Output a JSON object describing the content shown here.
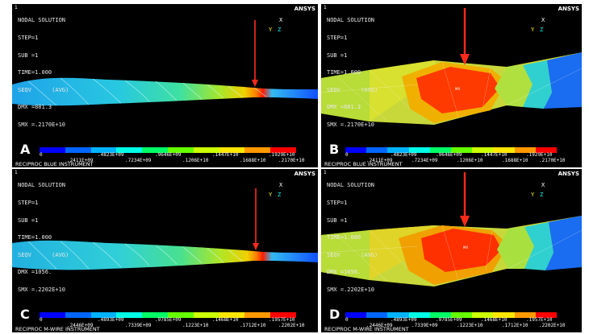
{
  "panels": [
    {
      "id": "A",
      "index": "1",
      "letter": "A",
      "title": "NODAL SOLUTION",
      "lines": [
        "STEP=1",
        "SUB =1",
        "TIME=1.000",
        "SEQV      (AVG)",
        "DMX =881.3",
        "SMX =.2170E+10"
      ],
      "brand": "ANSYS",
      "caption": "RECIPROC BLUE INSTRUMENT",
      "legend_top": [
        "0",
        ".4823E+09",
        ".9646E+09",
        ".1447E+10",
        ".1929E+10"
      ],
      "legend_bottom": [
        ".2411E+09",
        ".7234E+09",
        ".1206E+10",
        ".1688E+10",
        ".2170E+10"
      ],
      "view": "full"
    },
    {
      "id": "B",
      "index": "1",
      "letter": "B",
      "title": "NODAL SOLUTION",
      "lines": [
        "STEP=1",
        "SUB =1",
        "TIME=1.000",
        "SEQV      (AVG)",
        "DMX =881.3",
        "SMX =.2170E+10"
      ],
      "brand": "ANSYS",
      "caption": "RECIPROC BLUE INSTRUMENT",
      "legend_top": [
        "0",
        ".4823E+09",
        ".9646E+09",
        ".1447E+10",
        ".1929E+10"
      ],
      "legend_bottom": [
        ".2411E+09",
        ".7234E+09",
        ".1206E+10",
        ".1688E+10",
        ".2170E+10"
      ],
      "view": "zoom"
    },
    {
      "id": "C",
      "index": "1",
      "letter": "C",
      "title": "NODAL SOLUTION",
      "lines": [
        "STEP=1",
        "SUB =1",
        "TIME=1.000",
        "SEQV      (AVG)",
        "DMX =1056.",
        "SMX =.2202E+10"
      ],
      "brand": "ANSYS",
      "caption": "RECIPROC M-WIRE INSTRUMENT",
      "legend_top": [
        "0",
        ".4893E+09",
        ".9785E+09",
        ".1468E+10",
        ".1957E+10"
      ],
      "legend_bottom": [
        ".2446E+09",
        ".7339E+09",
        ".1223E+10",
        ".1712E+10",
        ".2202E+10"
      ],
      "view": "full"
    },
    {
      "id": "D",
      "index": "1",
      "letter": "D",
      "title": "NODAL SOLUTION",
      "lines": [
        "STEP=1",
        "SUB =1",
        "TIME=1.000",
        "SEQV      (AVG)",
        "DMX =1056.",
        "SMX =.2202E+10"
      ],
      "brand": "ANSYS",
      "caption": "RECIPROC M-WIRE INSTRUMENT",
      "legend_top": [
        "0",
        ".4893E+09",
        ".9785E+09",
        ".1468E+10",
        ".1957E+10"
      ],
      "legend_bottom": [
        ".2446E+09",
        ".7339E+09",
        ".1223E+10",
        ".1712E+10",
        ".2202E+10"
      ],
      "view": "zoom"
    }
  ],
  "axis_labels": {
    "x": "X",
    "y": "Y",
    "z": "Z"
  },
  "mx_label": "MX",
  "contour_colors": [
    "#0000ff",
    "#0066ff",
    "#00b3ff",
    "#00ffe6",
    "#00ff66",
    "#66ff00",
    "#ccff00",
    "#ffe600",
    "#ff9900",
    "#ff0000"
  ],
  "colors": {
    "background": "#000000",
    "arrow": "#ff2a1a",
    "text": "#ffffff"
  }
}
